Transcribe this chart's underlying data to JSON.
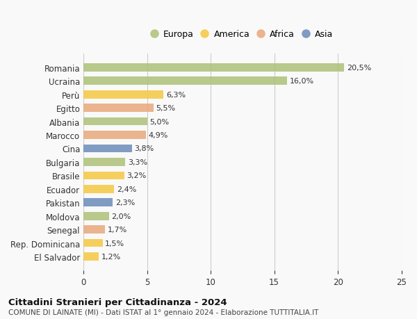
{
  "countries": [
    "Romania",
    "Ucraina",
    "Perù",
    "Egitto",
    "Albania",
    "Marocco",
    "Cina",
    "Bulgaria",
    "Brasile",
    "Ecuador",
    "Pakistan",
    "Moldova",
    "Senegal",
    "Rep. Dominicana",
    "El Salvador"
  ],
  "values": [
    20.5,
    16.0,
    6.3,
    5.5,
    5.0,
    4.9,
    3.8,
    3.3,
    3.2,
    2.4,
    2.3,
    2.0,
    1.7,
    1.5,
    1.2
  ],
  "labels": [
    "20,5%",
    "16,0%",
    "6,3%",
    "5,5%",
    "5,0%",
    "4,9%",
    "3,8%",
    "3,3%",
    "3,2%",
    "2,4%",
    "2,3%",
    "2,0%",
    "1,7%",
    "1,5%",
    "1,2%"
  ],
  "continents": [
    "Europa",
    "Europa",
    "America",
    "Africa",
    "Europa",
    "Africa",
    "Asia",
    "Europa",
    "America",
    "America",
    "Asia",
    "Europa",
    "Africa",
    "America",
    "America"
  ],
  "colors": {
    "Europa": "#adc178",
    "America": "#f5c842",
    "Africa": "#e8a87c",
    "Asia": "#6b8cba"
  },
  "legend_order": [
    "Europa",
    "America",
    "Africa",
    "Asia"
  ],
  "title": "Cittadini Stranieri per Cittadinanza - 2024",
  "subtitle": "COMUNE DI LAINATE (MI) - Dati ISTAT al 1° gennaio 2024 - Elaborazione TUTTITALIA.IT",
  "xlim": [
    0,
    25
  ],
  "xticks": [
    0,
    5,
    10,
    15,
    20,
    25
  ],
  "background_color": "#f9f9f9",
  "grid_color": "#cccccc"
}
